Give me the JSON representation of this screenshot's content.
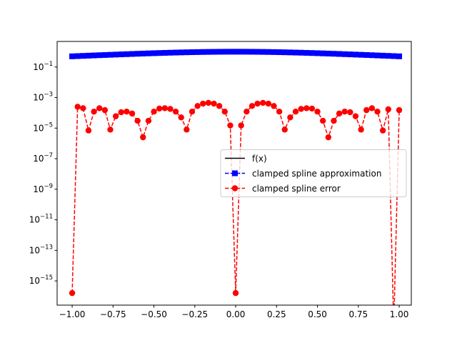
{
  "chart_data": {
    "type": "line",
    "x": [
      -1,
      -0.9667,
      -0.9333,
      -0.9,
      -0.8667,
      -0.8333,
      -0.8,
      -0.7667,
      -0.7333,
      -0.7,
      -0.6667,
      -0.6333,
      -0.6,
      -0.5667,
      -0.5333,
      -0.5,
      -0.4667,
      -0.4333,
      -0.4,
      -0.3667,
      -0.3333,
      -0.3,
      -0.2667,
      -0.2333,
      -0.2,
      -0.1667,
      -0.1333,
      -0.1,
      -0.0667,
      -0.0333,
      0,
      0.0333,
      0.0667,
      0.1,
      0.1333,
      0.1667,
      0.2,
      0.2333,
      0.2667,
      0.3,
      0.3333,
      0.3667,
      0.4,
      0.4333,
      0.4667,
      0.5,
      0.5333,
      0.5667,
      0.6,
      0.6333,
      0.6667,
      0.7,
      0.7333,
      0.7667,
      0.8,
      0.8333,
      0.8667,
      0.9,
      0.9333,
      0.9667,
      1
    ],
    "series": [
      {
        "name": "f(x)",
        "color": "#000000",
        "linestyle": "solid",
        "marker": "none",
        "values": [
          0.5,
          0.517,
          0.5344,
          0.5525,
          0.5711,
          0.5902,
          0.6098,
          0.6298,
          0.6503,
          0.6711,
          0.6923,
          0.7137,
          0.7353,
          0.7569,
          0.7785,
          0.8,
          0.8212,
          0.8419,
          0.8621,
          0.8815,
          0.9,
          0.9174,
          0.9336,
          0.9484,
          0.9615,
          0.973,
          0.9825,
          0.9901,
          0.9956,
          0.9989,
          1,
          0.9989,
          0.9956,
          0.9901,
          0.9825,
          0.973,
          0.9615,
          0.9484,
          0.9336,
          0.9174,
          0.9,
          0.8815,
          0.8621,
          0.8419,
          0.8212,
          0.8,
          0.7785,
          0.7569,
          0.7353,
          0.7137,
          0.6923,
          0.6711,
          0.6503,
          0.6298,
          0.6098,
          0.5902,
          0.5711,
          0.5525,
          0.5344,
          0.517,
          0.5
        ]
      },
      {
        "name": "clamped spline approximation",
        "color": "#0000ff",
        "linestyle": "dashed",
        "marker": "square",
        "values": [
          0.5,
          0.517,
          0.5344,
          0.5525,
          0.5711,
          0.5902,
          0.6098,
          0.6298,
          0.6503,
          0.6711,
          0.6923,
          0.7137,
          0.7353,
          0.7569,
          0.7785,
          0.8,
          0.8212,
          0.8419,
          0.8621,
          0.8815,
          0.9,
          0.9174,
          0.9336,
          0.9484,
          0.9615,
          0.973,
          0.9825,
          0.9901,
          0.9956,
          0.9989,
          1,
          0.9989,
          0.9956,
          0.9901,
          0.9825,
          0.973,
          0.9615,
          0.9484,
          0.9336,
          0.9174,
          0.9,
          0.8815,
          0.8621,
          0.8419,
          0.8212,
          0.8,
          0.7785,
          0.7569,
          0.7353,
          0.7137,
          0.6923,
          0.6711,
          0.6503,
          0.6298,
          0.6098,
          0.5902,
          0.5711,
          0.5525,
          0.5344,
          0.517,
          0.5
        ]
      },
      {
        "name": "clamped spline error",
        "color": "#ff0000",
        "linestyle": "dashed",
        "marker": "circle",
        "values": [
          1.6e-16,
          0.00025,
          0.0002,
          7e-06,
          0.00012,
          0.0002,
          0.00015,
          8e-06,
          6e-05,
          0.00011,
          0.00012,
          9e-05,
          3e-05,
          2.5e-06,
          3e-05,
          0.00012,
          0.00019,
          0.0002,
          0.00018,
          0.00012,
          5e-05,
          8e-06,
          0.00012,
          0.00028,
          0.0004,
          0.00045,
          0.0004,
          0.00028,
          0.00012,
          1.5e-05,
          1.6e-16,
          1.5e-05,
          0.00012,
          0.00028,
          0.0004,
          0.00045,
          0.0004,
          0.00028,
          0.00012,
          8e-06,
          5e-05,
          0.00012,
          0.00018,
          0.0002,
          0.00019,
          0.00012,
          3e-05,
          2.5e-06,
          3e-05,
          9e-05,
          0.00012,
          0.00011,
          6e-05,
          8e-06,
          0.00015,
          0.0002,
          0.00012,
          7e-06,
          0.00017,
          1e-18,
          0.00015
        ]
      }
    ],
    "xlim": [
      -1.092,
      1.074
    ],
    "ylim": [
      2.6e-17,
      4.7
    ],
    "yscale": "log",
    "xticks": [
      {
        "value": -1,
        "label": "−1.00"
      },
      {
        "value": -0.75,
        "label": "−0.75"
      },
      {
        "value": -0.5,
        "label": "−0.50"
      },
      {
        "value": -0.25,
        "label": "−0.25"
      },
      {
        "value": 0,
        "label": "0.00"
      },
      {
        "value": 0.25,
        "label": "0.25"
      },
      {
        "value": 0.5,
        "label": "0.50"
      },
      {
        "value": 0.75,
        "label": "0.75"
      },
      {
        "value": 1,
        "label": "1.00"
      }
    ],
    "yticks": [
      {
        "value": 1e-15,
        "label": "10−15"
      },
      {
        "value": 1e-13,
        "label": "10−13"
      },
      {
        "value": 1e-11,
        "label": "10−11"
      },
      {
        "value": 1e-09,
        "label": "10−9"
      },
      {
        "value": 1e-07,
        "label": "10−7"
      },
      {
        "value": 1e-05,
        "label": "10−5"
      },
      {
        "value": 0.001,
        "label": "10−3"
      },
      {
        "value": 0.1,
        "label": "10−1"
      }
    ],
    "legend": "center right"
  }
}
